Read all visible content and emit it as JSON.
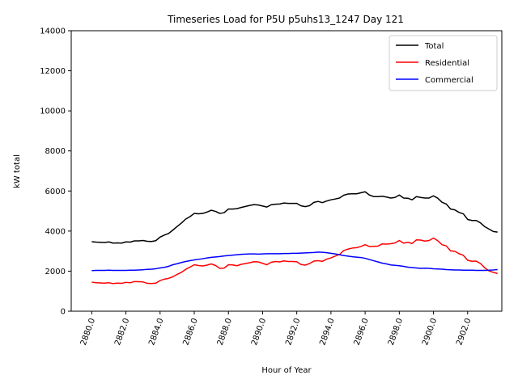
{
  "chart_data": {
    "type": "line",
    "title": "Timeseries Load for P5U p5uhs13_1247  Day 121",
    "xlabel": "Hour of Year",
    "ylabel": "kW total",
    "xlim": [
      2878.8,
      2904.0
    ],
    "ylim": [
      0,
      14000
    ],
    "xticks": [
      2880,
      2882,
      2884,
      2886,
      2888,
      2890,
      2892,
      2894,
      2896,
      2898,
      2900,
      2902
    ],
    "xtick_labels": [
      "2880.0",
      "2882.0",
      "2884.0",
      "2886.0",
      "2888.0",
      "2890.0",
      "2892.0",
      "2894.0",
      "2896.0",
      "2898.0",
      "2900.0",
      "2902.0"
    ],
    "yticks": [
      0,
      2000,
      4000,
      6000,
      8000,
      10000,
      12000,
      14000
    ],
    "ytick_labels": [
      "0",
      "2000",
      "4000",
      "6000",
      "8000",
      "10000",
      "12000",
      "14000"
    ],
    "legend_position": "top-right",
    "x": [
      2880.0,
      2880.25,
      2880.5,
      2880.75,
      2881.0,
      2881.25,
      2881.5,
      2881.75,
      2882.0,
      2882.25,
      2882.5,
      2882.75,
      2883.0,
      2883.25,
      2883.5,
      2883.75,
      2884.0,
      2884.25,
      2884.5,
      2884.75,
      2885.0,
      2885.25,
      2885.5,
      2885.75,
      2886.0,
      2886.25,
      2886.5,
      2886.75,
      2887.0,
      2887.25,
      2887.5,
      2887.75,
      2888.0,
      2888.25,
      2888.5,
      2888.75,
      2889.0,
      2889.25,
      2889.5,
      2889.75,
      2890.0,
      2890.25,
      2890.5,
      2890.75,
      2891.0,
      2891.25,
      2891.5,
      2891.75,
      2892.0,
      2892.25,
      2892.5,
      2892.75,
      2893.0,
      2893.25,
      2893.5,
      2893.75,
      2894.0,
      2894.25,
      2894.5,
      2894.75,
      2895.0,
      2895.25,
      2895.5,
      2895.75,
      2896.0,
      2896.25,
      2896.5,
      2896.75,
      2897.0,
      2897.25,
      2897.5,
      2897.75,
      2898.0,
      2898.25,
      2898.5,
      2898.75,
      2899.0,
      2899.25,
      2899.5,
      2899.75,
      2900.0,
      2900.25,
      2900.5,
      2900.75,
      2901.0,
      2901.25,
      2901.5,
      2901.75,
      2902.0,
      2902.25,
      2902.5,
      2902.75,
      2903.0,
      2903.25,
      2903.5,
      2903.75
    ],
    "series": [
      {
        "name": "Total",
        "color": "#000000",
        "values": [
          3470,
          3450,
          3440,
          3430,
          3460,
          3400,
          3410,
          3400,
          3460,
          3450,
          3510,
          3510,
          3530,
          3490,
          3480,
          3520,
          3700,
          3800,
          3880,
          4050,
          4230,
          4400,
          4600,
          4720,
          4880,
          4860,
          4880,
          4950,
          5040,
          4980,
          4880,
          4920,
          5100,
          5100,
          5120,
          5180,
          5230,
          5280,
          5320,
          5300,
          5250,
          5200,
          5310,
          5340,
          5350,
          5400,
          5380,
          5380,
          5380,
          5260,
          5220,
          5270,
          5430,
          5480,
          5420,
          5500,
          5560,
          5600,
          5650,
          5790,
          5850,
          5860,
          5860,
          5910,
          5960,
          5800,
          5720,
          5720,
          5740,
          5700,
          5650,
          5680,
          5800,
          5650,
          5640,
          5560,
          5720,
          5680,
          5650,
          5650,
          5760,
          5640,
          5440,
          5350,
          5100,
          5060,
          4930,
          4860,
          4580,
          4530,
          4530,
          4410,
          4220,
          4100,
          3980,
          3950
        ]
      },
      {
        "name": "Residential",
        "color": "#ff0000",
        "values": [
          1450,
          1420,
          1410,
          1400,
          1420,
          1380,
          1400,
          1390,
          1440,
          1420,
          1480,
          1470,
          1460,
          1390,
          1380,
          1400,
          1530,
          1600,
          1640,
          1720,
          1840,
          1940,
          2090,
          2200,
          2320,
          2280,
          2260,
          2300,
          2360,
          2280,
          2140,
          2150,
          2320,
          2310,
          2270,
          2340,
          2380,
          2420,
          2470,
          2460,
          2390,
          2320,
          2440,
          2480,
          2460,
          2510,
          2480,
          2480,
          2470,
          2330,
          2300,
          2380,
          2500,
          2520,
          2490,
          2600,
          2660,
          2750,
          2830,
          3030,
          3100,
          3150,
          3170,
          3230,
          3320,
          3230,
          3240,
          3250,
          3360,
          3350,
          3370,
          3410,
          3530,
          3400,
          3440,
          3380,
          3560,
          3550,
          3500,
          3530,
          3650,
          3520,
          3320,
          3260,
          3010,
          2990,
          2870,
          2790,
          2540,
          2490,
          2500,
          2380,
          2170,
          2010,
          1940,
          1880
        ]
      },
      {
        "name": "Commercial",
        "color": "#0000ff",
        "values": [
          2030,
          2040,
          2040,
          2040,
          2050,
          2040,
          2040,
          2040,
          2040,
          2050,
          2050,
          2060,
          2070,
          2090,
          2100,
          2120,
          2160,
          2190,
          2240,
          2320,
          2370,
          2430,
          2480,
          2520,
          2560,
          2590,
          2620,
          2660,
          2690,
          2710,
          2730,
          2760,
          2780,
          2800,
          2820,
          2840,
          2850,
          2860,
          2860,
          2850,
          2860,
          2870,
          2870,
          2870,
          2870,
          2880,
          2880,
          2890,
          2890,
          2900,
          2910,
          2920,
          2930,
          2950,
          2940,
          2920,
          2890,
          2860,
          2820,
          2780,
          2750,
          2720,
          2700,
          2680,
          2640,
          2580,
          2520,
          2460,
          2400,
          2360,
          2310,
          2290,
          2270,
          2240,
          2200,
          2180,
          2160,
          2140,
          2150,
          2140,
          2120,
          2110,
          2100,
          2080,
          2070,
          2060,
          2060,
          2050,
          2050,
          2050,
          2040,
          2040,
          2040,
          2050,
          2060,
          2080
        ]
      }
    ]
  }
}
